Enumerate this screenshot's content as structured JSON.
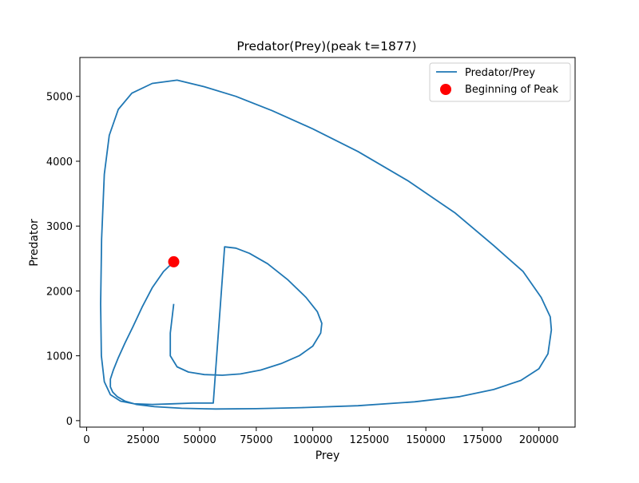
{
  "chart_data": {
    "type": "line",
    "title": "Predator(Prey)(peak t=1877)",
    "xlabel": "Prey",
    "ylabel": "Predator",
    "xlim": [
      -3000,
      216000
    ],
    "ylim": [
      -100,
      5600
    ],
    "xticks": [
      0,
      25000,
      50000,
      75000,
      100000,
      125000,
      150000,
      175000,
      200000
    ],
    "yticks": [
      0,
      1000,
      2000,
      3000,
      4000,
      5000
    ],
    "grid": false,
    "legend_position": "top-right",
    "series": [
      {
        "name": "Predator/Prey",
        "kind": "line",
        "color": "#1f77b4",
        "x": [
          38500,
          34000,
          29000,
          24500,
          20500,
          17000,
          14000,
          11800,
          10500,
          10500,
          11500,
          13500,
          17000,
          22000,
          30000,
          42000,
          57000,
          75000,
          95000,
          120000,
          145000,
          165000,
          180000,
          192000,
          200000,
          204000,
          205500,
          205000,
          201000,
          193000,
          180000,
          163000,
          142000,
          120000,
          100000,
          82000,
          66000,
          52000,
          40000,
          29000,
          20000,
          14000,
          10000,
          7800,
          6600,
          6200,
          6500,
          7800,
          10500,
          15000,
          21000,
          29000,
          38000,
          47000,
          56000,
          61000,
          66000,
          72000,
          80000,
          89000,
          97000,
          102000,
          104000,
          103500,
          100000,
          94000,
          86000,
          77000,
          68000,
          60000,
          52000,
          45000,
          40000,
          37000,
          37000,
          38500
        ],
        "y": [
          2450,
          2300,
          2050,
          1750,
          1450,
          1200,
          970,
          780,
          640,
          520,
          440,
          370,
          300,
          250,
          215,
          190,
          180,
          185,
          200,
          230,
          290,
          370,
          480,
          620,
          800,
          1030,
          1400,
          1600,
          1900,
          2300,
          2700,
          3200,
          3700,
          4150,
          4500,
          4780,
          5000,
          5150,
          5250,
          5200,
          5050,
          4800,
          4400,
          3800,
          2800,
          1800,
          1000,
          600,
          400,
          300,
          260,
          250,
          260,
          270,
          270,
          2680,
          2660,
          2580,
          2420,
          2170,
          1900,
          1680,
          1500,
          1350,
          1150,
          1000,
          880,
          780,
          720,
          700,
          710,
          750,
          830,
          1000,
          1350,
          1800
        ]
      },
      {
        "name": "Beginning of Peak",
        "kind": "scatter",
        "color": "#ff0000",
        "x": [
          38500
        ],
        "y": [
          2450
        ]
      }
    ]
  }
}
